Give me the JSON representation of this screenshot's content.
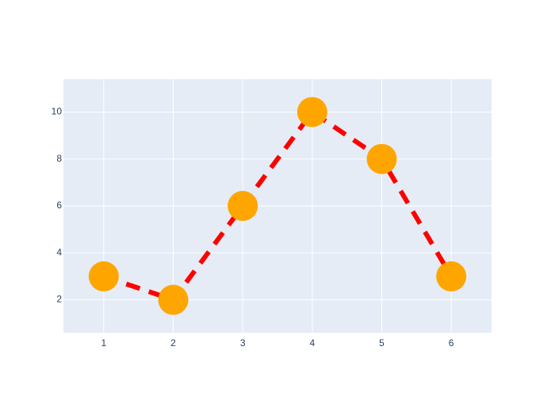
{
  "chart_data": {
    "type": "line",
    "x": [
      1,
      2,
      3,
      4,
      5,
      6
    ],
    "series": [
      {
        "values": [
          3,
          2,
          6,
          10,
          8,
          3
        ],
        "line_color": "#ff0000",
        "line_style": "dash",
        "marker_color": "#ffa500"
      }
    ],
    "xlim": [
      0.42,
      6.58
    ],
    "ylim": [
      0.6,
      11.4
    ],
    "x_ticks": [
      1,
      2,
      3,
      4,
      5,
      6
    ],
    "y_ticks": [
      2,
      4,
      6,
      8,
      10
    ],
    "x_tick_labels": [
      "1",
      "2",
      "3",
      "4",
      "5",
      "6"
    ],
    "y_tick_labels": [
      "2",
      "4",
      "6",
      "8",
      "10"
    ],
    "grid": true,
    "plot_background": "#e5ecf6",
    "grid_color": "#ffffff",
    "tick_label_color": "#2a3f5f"
  }
}
